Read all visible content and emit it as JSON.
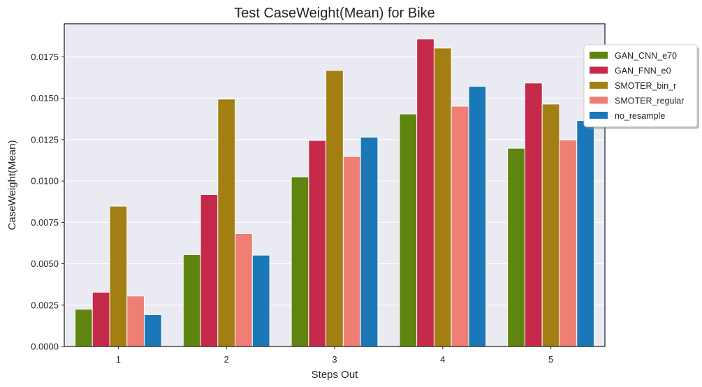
{
  "chart_data": {
    "type": "bar",
    "title": "Test CaseWeight(Mean) for Bike",
    "xlabel": "Steps Out",
    "ylabel": "CaseWeight(Mean)",
    "categories": [
      "1",
      "2",
      "3",
      "4",
      "5"
    ],
    "ylim": [
      0,
      0.0195
    ],
    "yticks": [
      "0.0000",
      "0.0025",
      "0.0050",
      "0.0075",
      "0.0100",
      "0.0125",
      "0.0150",
      "0.0175"
    ],
    "grid": true,
    "legend_position": "upper right, outside plot",
    "series": [
      {
        "name": "GAN_CNN_e70",
        "color": "#5f8511",
        "values": [
          0.00225,
          0.00555,
          0.01025,
          0.01405,
          0.01198
        ]
      },
      {
        "name": "GAN_FNN_e0",
        "color": "#c62a4b",
        "values": [
          0.00328,
          0.00918,
          0.01245,
          0.01858,
          0.01592
        ]
      },
      {
        "name": "SMOTER_bin_r",
        "color": "#a37e12",
        "values": [
          0.00848,
          0.01495,
          0.01668,
          0.01803,
          0.01465
        ]
      },
      {
        "name": "SMOTER_regular",
        "color": "#ef7f75",
        "values": [
          0.00305,
          0.00682,
          0.01148,
          0.01452,
          0.01248
        ]
      },
      {
        "name": "no_resample",
        "color": "#1a78b8",
        "values": [
          0.00192,
          0.00552,
          0.01265,
          0.01572,
          0.01365
        ]
      }
    ]
  }
}
